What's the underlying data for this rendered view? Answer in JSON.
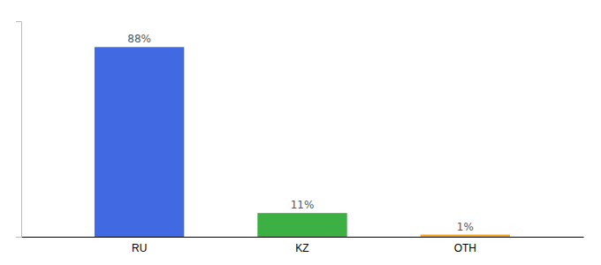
{
  "chart_data": {
    "type": "bar",
    "categories": [
      "RU",
      "KZ",
      "OTH"
    ],
    "values": [
      88,
      11,
      1
    ],
    "value_labels": [
      "88%",
      "11%",
      "1%"
    ],
    "colors": [
      "#4169e1",
      "#3cb043",
      "#f5a623"
    ],
    "ylim": [
      0,
      100
    ],
    "data_labels": true,
    "tick_labels": "x",
    "grid": false
  }
}
